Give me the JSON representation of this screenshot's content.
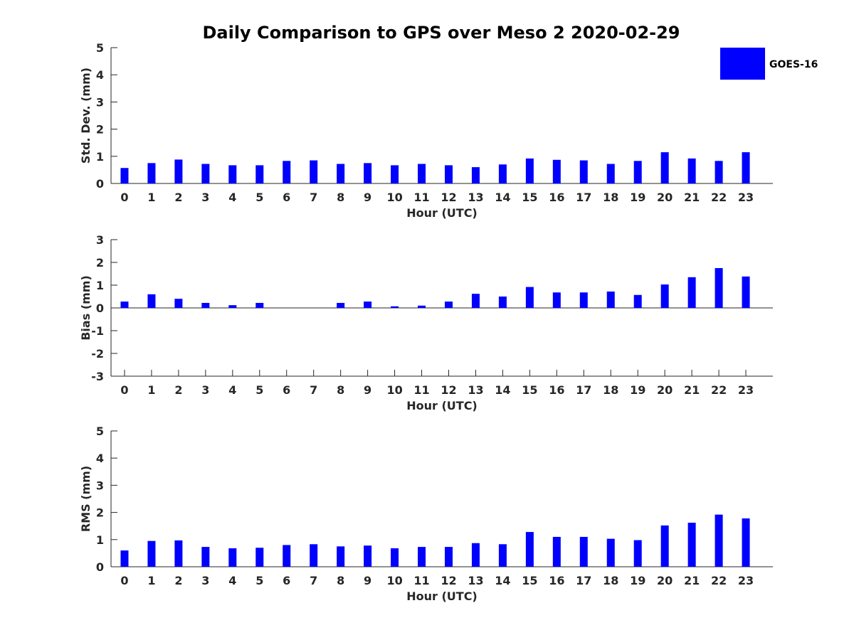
{
  "title": "Daily Comparison to GPS over Meso 2 2020-02-29",
  "legend": {
    "label": "GOES-16",
    "color": "#0000ff",
    "placement": "top-right"
  },
  "chart_data": [
    {
      "type": "bar",
      "categories": [
        "0",
        "1",
        "2",
        "3",
        "4",
        "5",
        "6",
        "7",
        "8",
        "9",
        "10",
        "11",
        "12",
        "13",
        "14",
        "15",
        "16",
        "17",
        "18",
        "19",
        "20",
        "21",
        "22",
        "23"
      ],
      "series": [
        {
          "name": "GOES-16",
          "color": "#0000ff",
          "values": [
            0.57,
            0.75,
            0.88,
            0.72,
            0.67,
            0.67,
            0.83,
            0.85,
            0.72,
            0.75,
            0.67,
            0.72,
            0.67,
            0.6,
            0.7,
            0.92,
            0.87,
            0.85,
            0.72,
            0.83,
            1.15,
            0.92,
            0.83,
            1.15
          ]
        }
      ],
      "xlabel": "Hour (UTC)",
      "ylabel": "Std. Dev. (mm)",
      "ylim": [
        0,
        5
      ],
      "yticks": [
        "0",
        "1",
        "2",
        "3",
        "4",
        "5"
      ]
    },
    {
      "type": "bar",
      "categories": [
        "0",
        "1",
        "2",
        "3",
        "4",
        "5",
        "6",
        "7",
        "8",
        "9",
        "10",
        "11",
        "12",
        "13",
        "14",
        "15",
        "16",
        "17",
        "18",
        "19",
        "20",
        "21",
        "22",
        "23"
      ],
      "series": [
        {
          "name": "GOES-16",
          "color": "#0000ff",
          "values": [
            0.28,
            0.6,
            0.4,
            0.22,
            0.12,
            0.22,
            0.0,
            0.0,
            0.22,
            0.28,
            0.07,
            0.1,
            0.28,
            0.62,
            0.5,
            0.92,
            0.68,
            0.68,
            0.72,
            0.57,
            1.03,
            1.35,
            1.75,
            1.38
          ]
        }
      ],
      "xlabel": "Hour (UTC)",
      "ylabel": "Bias (mm)",
      "ylim": [
        -3,
        3
      ],
      "yticks": [
        "-3",
        "-2",
        "-1",
        "0",
        "1",
        "2",
        "3"
      ]
    },
    {
      "type": "bar",
      "categories": [
        "0",
        "1",
        "2",
        "3",
        "4",
        "5",
        "6",
        "7",
        "8",
        "9",
        "10",
        "11",
        "12",
        "13",
        "14",
        "15",
        "16",
        "17",
        "18",
        "19",
        "20",
        "21",
        "22",
        "23"
      ],
      "series": [
        {
          "name": "GOES-16",
          "color": "#0000ff",
          "values": [
            0.6,
            0.95,
            0.97,
            0.73,
            0.68,
            0.7,
            0.8,
            0.83,
            0.75,
            0.78,
            0.68,
            0.73,
            0.73,
            0.87,
            0.83,
            1.28,
            1.1,
            1.1,
            1.03,
            0.98,
            1.52,
            1.62,
            1.92,
            1.78
          ]
        }
      ],
      "xlabel": "Hour (UTC)",
      "ylabel": "RMS (mm)",
      "ylim": [
        0,
        5
      ],
      "yticks": [
        "0",
        "1",
        "2",
        "3",
        "4",
        "5"
      ]
    }
  ]
}
